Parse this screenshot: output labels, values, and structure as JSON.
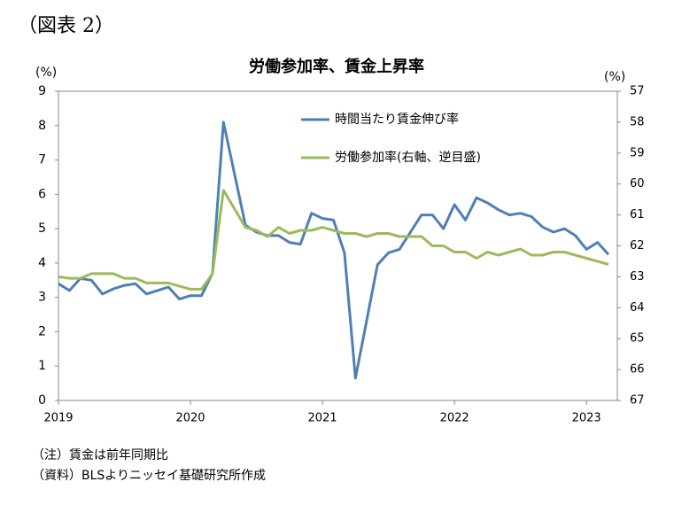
{
  "header": "（図表 2）",
  "notes": [
    "（注）賃金は前年同期比",
    "（資料）BLSよりニッセイ基礎研究所作成"
  ],
  "chart_data": {
    "type": "line",
    "title": "労働参加率、賃金上昇率",
    "y_label": "(%)",
    "y2_label": "(%)",
    "categories": [
      "2019",
      null,
      null,
      null,
      null,
      null,
      null,
      null,
      null,
      null,
      null,
      null,
      "2020",
      null,
      null,
      null,
      null,
      null,
      null,
      null,
      null,
      null,
      null,
      null,
      "2021",
      null,
      null,
      null,
      null,
      null,
      null,
      null,
      null,
      null,
      null,
      null,
      "2022",
      null,
      null,
      null,
      null,
      null,
      null,
      null,
      null,
      null,
      null,
      null,
      "2023",
      null,
      null
    ],
    "series": [
      {
        "name": "時間当たり賃金伸び率",
        "color": "#4f7fb5",
        "values": [
          3.4,
          3.2,
          3.55,
          3.5,
          3.1,
          3.25,
          3.35,
          3.4,
          3.1,
          3.2,
          3.3,
          2.95,
          3.05,
          3.05,
          3.7,
          8.1,
          6.6,
          5.1,
          4.9,
          4.8,
          4.8,
          4.6,
          4.55,
          5.45,
          5.3,
          5.25,
          4.3,
          0.65,
          2.3,
          3.95,
          4.3,
          4.4,
          4.9,
          5.4,
          5.4,
          5.0,
          5.7,
          5.25,
          5.9,
          5.75,
          5.55,
          5.4,
          5.45,
          5.35,
          5.05,
          4.9,
          5.0,
          4.8,
          4.4,
          4.6,
          4.25
        ]
      },
      {
        "name": "労働参加率(右軸、逆目盛)",
        "color": "#9bbb59",
        "axis": "y2",
        "values": [
          63.0,
          63.05,
          63.05,
          62.9,
          62.9,
          62.9,
          63.05,
          63.05,
          63.2,
          63.2,
          63.2,
          63.3,
          63.4,
          63.4,
          62.9,
          60.2,
          60.8,
          61.4,
          61.5,
          61.7,
          61.4,
          61.6,
          61.5,
          61.5,
          61.4,
          61.5,
          61.6,
          61.6,
          61.7,
          61.6,
          61.6,
          61.7,
          61.7,
          61.7,
          62.0,
          62.0,
          62.2,
          62.2,
          62.4,
          62.2,
          62.3,
          62.2,
          62.1,
          62.3,
          62.3,
          62.2,
          62.2,
          62.3,
          62.4,
          62.5,
          62.6
        ]
      }
    ],
    "ylim": [
      0,
      9
    ],
    "yticks": [
      0,
      1,
      2,
      3,
      4,
      5,
      6,
      7,
      8,
      9
    ],
    "y2lim": [
      67,
      57
    ],
    "y2ticks": [
      57,
      58,
      59,
      60,
      61,
      62,
      63,
      64,
      65,
      66,
      67
    ],
    "grid": false
  }
}
